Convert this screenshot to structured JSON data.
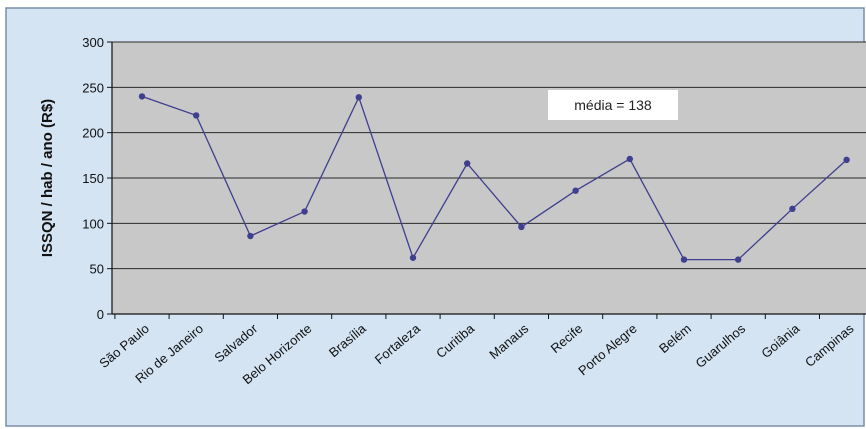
{
  "chart_data": {
    "type": "line",
    "ylabel": "ISSQN / hab / ano (R$)",
    "xlabel": "",
    "ylim": [
      0,
      300
    ],
    "yticks": [
      "0",
      "50",
      "100",
      "150",
      "200",
      "250",
      "300"
    ],
    "grid": true,
    "categories": [
      "São Paulo",
      "Rio de Janeiro",
      "Salvador",
      "Belo Horizonte",
      "Brasília",
      "Fortaleza",
      "Curitiba",
      "Manaus",
      "Recife",
      "Porto Alegre",
      "Belém",
      "Guarulhos",
      "Goiânia",
      "Campinas"
    ],
    "series": [
      {
        "values": [
          240,
          219,
          86,
          113,
          239,
          62,
          166,
          96,
          136,
          171,
          60,
          60,
          116,
          170
        ]
      }
    ],
    "annotation": "média = 138",
    "colors": {
      "line": "#3f3f8f",
      "plot_bg": "#c8c8c8",
      "outer_bg": "#d4e4f3",
      "grid": "#2a2a2a"
    }
  }
}
